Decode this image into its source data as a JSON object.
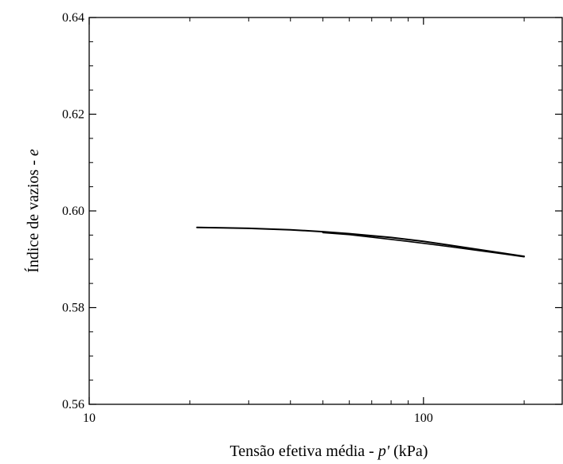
{
  "chart_data": {
    "type": "line",
    "title": "",
    "xlabel": "Tensão efetiva média - ",
    "xlabel_var": "p'",
    "xlabel_unit": " (kPa)",
    "ylabel": "Índice de vazios - ",
    "ylabel_var": "e",
    "x_scale": "log",
    "xlim": [
      10,
      260
    ],
    "ylim": [
      0.56,
      0.64
    ],
    "x_ticks": [
      10,
      100
    ],
    "x_tick_labels": [
      "10",
      "100"
    ],
    "y_ticks": [
      0.56,
      0.58,
      0.6,
      0.62,
      0.64
    ],
    "y_tick_labels": [
      "0.56",
      "0.58",
      "0.60",
      "0.62",
      "0.64"
    ],
    "grid": false,
    "line_color": "#000000",
    "series": [
      {
        "x": [
          21,
          25,
          30,
          40,
          50,
          60,
          80,
          100,
          120,
          150,
          200
        ],
        "y": [
          0.5966,
          0.5965,
          0.5964,
          0.5961,
          0.5957,
          0.5953,
          0.5945,
          0.5937,
          0.5929,
          0.5919,
          0.5906
        ]
      },
      {
        "x": [
          50,
          60,
          80,
          100,
          120,
          150,
          200
        ],
        "y": [
          0.5955,
          0.5951,
          0.5941,
          0.5933,
          0.5926,
          0.5917,
          0.5905
        ]
      }
    ]
  }
}
